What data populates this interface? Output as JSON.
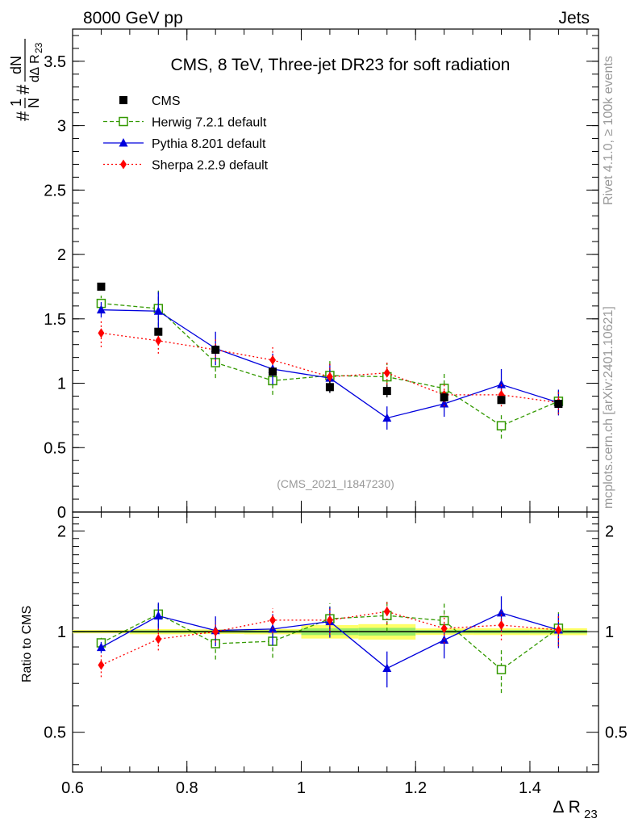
{
  "header": {
    "left": "8000 GeV pp",
    "right": "Jets"
  },
  "side_labels": {
    "rivet": "Rivet 4.1.0, ≥ 100k events",
    "mcplots": "mcplots.cern.ch [arXiv:2401.10621]"
  },
  "chart_data": {
    "type": "scatter",
    "title": "CMS, 8 TeV, Three-jet DR23 for soft radiation",
    "watermark": "(CMS_2021_I1847230)",
    "ylabel_main": "#1/N #dN/d∆ R23",
    "ylabel_ratio": "Ratio to CMS",
    "xlabel": "∆ R23",
    "xlim": [
      0.6,
      1.52
    ],
    "ylim_main": [
      0,
      3.75
    ],
    "ylim_ratio": [
      0.38,
      2.28
    ],
    "xticks": [
      0.6,
      0.8,
      1.0,
      1.2,
      1.4
    ],
    "xtick_labels": [
      "0.6",
      "0.8",
      "1",
      "1.2",
      "1.4"
    ],
    "yticks_main": [
      0,
      0.5,
      1,
      1.5,
      2,
      2.5,
      3,
      3.5
    ],
    "ytick_labels_main": [
      "0",
      "0.5",
      "1",
      "1.5",
      "2",
      "2.5",
      "3",
      "3.5"
    ],
    "yticks_ratio": [
      0.5,
      1,
      2
    ],
    "ytick_labels_ratio": [
      "0.5",
      "1",
      "2"
    ],
    "x": [
      0.65,
      0.75,
      0.85,
      0.95,
      1.05,
      1.15,
      1.25,
      1.35,
      1.45
    ],
    "data": {
      "name": "CMS",
      "values": [
        1.75,
        1.4,
        1.26,
        1.09,
        0.97,
        0.94,
        0.89,
        0.87,
        0.84
      ],
      "band": [
        0.02,
        0.025,
        0.02,
        0.02,
        0.045,
        0.05,
        0.02,
        0.02,
        0.02
      ]
    },
    "series": [
      {
        "name": "Herwig 7.2.1 default",
        "color": "#339900",
        "dash": "5,3",
        "marker": "open-square",
        "values": [
          1.62,
          1.58,
          1.16,
          1.02,
          1.06,
          1.05,
          0.96,
          0.67,
          0.86
        ],
        "errors": [
          0.06,
          0.14,
          0.12,
          0.11,
          0.12,
          0.11,
          0.12,
          0.1,
          0.1
        ]
      },
      {
        "name": "Pythia 8.201 default",
        "color": "#0000dd",
        "dash": "",
        "marker": "triangle",
        "values": [
          1.57,
          1.56,
          1.27,
          1.11,
          1.04,
          0.73,
          0.84,
          0.99,
          0.85
        ],
        "errors": [
          0.06,
          0.15,
          0.13,
          0.12,
          0.11,
          0.09,
          0.1,
          0.12,
          0.1
        ]
      },
      {
        "name": "Sherpa 2.2.9 default",
        "color": "#ff0000",
        "dash": "2,3",
        "marker": "diamond",
        "values": [
          1.39,
          1.33,
          1.26,
          1.18,
          1.05,
          1.08,
          0.91,
          0.91,
          0.85
        ],
        "errors": [
          0.11,
          0.1,
          0.09,
          0.1,
          0.1,
          0.09,
          0.09,
          0.09,
          0.09
        ]
      }
    ]
  }
}
